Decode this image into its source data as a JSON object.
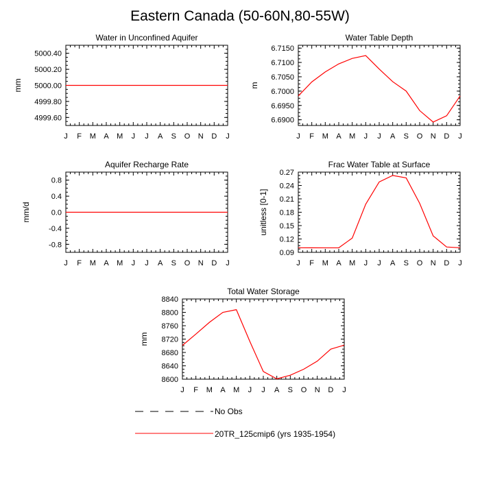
{
  "figure": {
    "title": "Eastern Canada (50-60N,80-55W)"
  },
  "months": [
    "J",
    "F",
    "M",
    "A",
    "M",
    "J",
    "J",
    "A",
    "S",
    "O",
    "N",
    "D",
    "J"
  ],
  "chart_data": [
    {
      "type": "line",
      "title": "Water in Unconfined Aquifer",
      "ylabel": "mm",
      "ylim": [
        4999.5,
        5000.5
      ],
      "yticks": [
        4999.6,
        4999.8,
        5000.0,
        5000.2,
        5000.4
      ],
      "ytick_labels": [
        "4999.60",
        "4999.80",
        "5000.00",
        "5000.20",
        "5000.40"
      ],
      "series": [
        {
          "name": "20TR_125cmip6 (yrs 1935-1954)",
          "color": "#ff0000",
          "values": [
            5000,
            5000,
            5000,
            5000,
            5000,
            5000,
            5000,
            5000,
            5000,
            5000,
            5000,
            5000,
            5000
          ]
        }
      ]
    },
    {
      "type": "line",
      "title": "Water Table Depth",
      "ylabel": "m",
      "ylim": [
        6.688,
        6.716
      ],
      "yticks": [
        6.69,
        6.695,
        6.7,
        6.705,
        6.71,
        6.715
      ],
      "ytick_labels": [
        "6.6900",
        "6.6950",
        "6.7000",
        "6.7050",
        "6.7100",
        "6.7150"
      ],
      "series": [
        {
          "name": "20TR_125cmip6 (yrs 1935-1954)",
          "color": "#ff0000",
          "values": [
            6.6983,
            6.7032,
            6.7067,
            6.7095,
            6.7114,
            6.7124,
            6.7077,
            6.7033,
            6.7,
            6.6932,
            6.6892,
            6.6914,
            6.6983
          ]
        }
      ]
    },
    {
      "type": "line",
      "title": "Aquifer Recharge Rate",
      "ylabel": "mm/d",
      "ylim": [
        -1.0,
        1.0
      ],
      "yticks": [
        -0.8,
        -0.4,
        0.0,
        0.4,
        0.8
      ],
      "ytick_labels": [
        "-0.8",
        "-0.4",
        "0.0",
        "0.4",
        "0.8"
      ],
      "series": [
        {
          "name": "20TR_125cmip6 (yrs 1935-1954)",
          "color": "#ff0000",
          "values": [
            0,
            0,
            0,
            0,
            0,
            0,
            0,
            0,
            0,
            0,
            0,
            0,
            0
          ]
        }
      ]
    },
    {
      "type": "line",
      "title": "Frac Water Table at Surface",
      "ylabel": "unitless [0-1]",
      "ylim": [
        0.09,
        0.27
      ],
      "yticks": [
        0.09,
        0.12,
        0.15,
        0.18,
        0.21,
        0.24,
        0.27
      ],
      "ytick_labels": [
        "0.09",
        "0.12",
        "0.15",
        "0.18",
        "0.21",
        "0.24",
        "0.27"
      ],
      "series": [
        {
          "name": "20TR_125cmip6 (yrs 1935-1954)",
          "color": "#ff0000",
          "values": [
            0.1003,
            0.1002,
            0.1001,
            0.1002,
            0.122,
            0.198,
            0.248,
            0.2625,
            0.257,
            0.2,
            0.127,
            0.102,
            0.1003
          ]
        }
      ]
    },
    {
      "type": "line",
      "title": "Total Water Storage",
      "ylabel": "mm",
      "ylim": [
        8600,
        8840
      ],
      "yticks": [
        8600,
        8640,
        8680,
        8720,
        8760,
        8800,
        8840
      ],
      "ytick_labels": [
        "8600",
        "8640",
        "8680",
        "8720",
        "8760",
        "8800",
        "8840"
      ],
      "series": [
        {
          "name": "20TR_125cmip6 (yrs 1935-1954)",
          "color": "#ff0000",
          "values": [
            8701,
            8735,
            8770,
            8800,
            8808,
            8713,
            8623,
            8601,
            8612,
            8630,
            8654,
            8690,
            8702
          ]
        }
      ]
    }
  ],
  "legend": {
    "items": [
      {
        "label": "No Obs",
        "style": "dashed",
        "color": "#000000"
      },
      {
        "label": "20TR_125cmip6 (yrs 1935-1954)",
        "style": "solid",
        "color": "#ff0000"
      }
    ]
  }
}
